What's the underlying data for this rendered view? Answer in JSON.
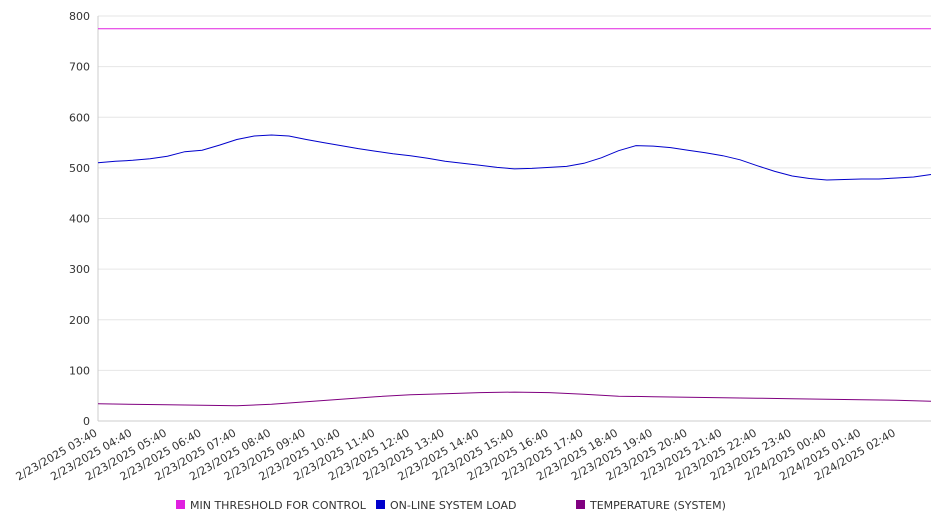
{
  "chart_data": {
    "type": "line",
    "x_ticks": [
      "2/23/2025 03:40",
      "2/23/2025 04:40",
      "2/23/2025 05:40",
      "2/23/2025 06:40",
      "2/23/2025 07:40",
      "2/23/2025 08:40",
      "2/23/2025 09:40",
      "2/23/2025 10:40",
      "2/23/2025 11:40",
      "2/23/2025 12:40",
      "2/23/2025 13:40",
      "2/23/2025 14:40",
      "2/23/2025 15:40",
      "2/23/2025 16:40",
      "2/23/2025 17:40",
      "2/23/2025 18:40",
      "2/23/2025 19:40",
      "2/23/2025 20:40",
      "2/23/2025 21:40",
      "2/23/2025 22:40",
      "2/23/2025 23:40",
      "2/24/2025 00:40",
      "2/24/2025 01:40",
      "2/24/2025 02:40"
    ],
    "ylim": [
      0,
      800
    ],
    "y_ticks": [
      0,
      100,
      200,
      300,
      400,
      500,
      600,
      700,
      800
    ],
    "grid": true,
    "legend_position": "bottom",
    "series": [
      {
        "name": "MIN THRESHOLD FOR CONTROL",
        "color": "#e020e0",
        "x": [
          "2/23/2025 03:40",
          "2/24/2025 03:40"
        ],
        "values": [
          775,
          775
        ]
      },
      {
        "name": "ON-LINE SYSTEM LOAD",
        "color": "#0000cc",
        "x": [
          "2/23/2025 03:40",
          "2/23/2025 04:10",
          "2/23/2025 04:40",
          "2/23/2025 05:10",
          "2/23/2025 05:40",
          "2/23/2025 06:10",
          "2/23/2025 06:40",
          "2/23/2025 07:10",
          "2/23/2025 07:40",
          "2/23/2025 08:10",
          "2/23/2025 08:40",
          "2/23/2025 09:10",
          "2/23/2025 09:40",
          "2/23/2025 10:10",
          "2/23/2025 10:40",
          "2/23/2025 11:10",
          "2/23/2025 11:40",
          "2/23/2025 12:10",
          "2/23/2025 12:40",
          "2/23/2025 13:10",
          "2/23/2025 13:40",
          "2/23/2025 14:10",
          "2/23/2025 14:40",
          "2/23/2025 15:10",
          "2/23/2025 15:40",
          "2/23/2025 16:10",
          "2/23/2025 16:40",
          "2/23/2025 17:10",
          "2/23/2025 17:40",
          "2/23/2025 18:10",
          "2/23/2025 18:40",
          "2/23/2025 19:10",
          "2/23/2025 19:40",
          "2/23/2025 20:10",
          "2/23/2025 20:40",
          "2/23/2025 21:10",
          "2/23/2025 21:40",
          "2/23/2025 22:10",
          "2/23/2025 22:40",
          "2/23/2025 23:10",
          "2/23/2025 23:40",
          "2/24/2025 00:10",
          "2/24/2025 00:40",
          "2/24/2025 01:10",
          "2/24/2025 01:40",
          "2/24/2025 02:10",
          "2/24/2025 02:40",
          "2/24/2025 03:10",
          "2/24/2025 03:40"
        ],
        "values": [
          510,
          513,
          515,
          518,
          523,
          532,
          535,
          545,
          556,
          563,
          565,
          563,
          556,
          550,
          544,
          538,
          533,
          528,
          524,
          519,
          513,
          509,
          505,
          501,
          498,
          499,
          501,
          503,
          509,
          520,
          534,
          544,
          543,
          540,
          535,
          530,
          524,
          516,
          504,
          493,
          484,
          479,
          476,
          477,
          478,
          478,
          480,
          482,
          487
        ]
      },
      {
        "name": "TEMPERATURE (SYSTEM)",
        "color": "#800080",
        "x": [
          "2/23/2025 03:40",
          "2/23/2025 05:40",
          "2/23/2025 07:40",
          "2/23/2025 08:40",
          "2/23/2025 09:40",
          "2/23/2025 10:40",
          "2/23/2025 11:40",
          "2/23/2025 12:40",
          "2/23/2025 13:40",
          "2/23/2025 14:40",
          "2/23/2025 15:40",
          "2/23/2025 16:40",
          "2/23/2025 17:40",
          "2/23/2025 18:40",
          "2/23/2025 19:40",
          "2/23/2025 20:40",
          "2/23/2025 21:40",
          "2/23/2025 22:40",
          "2/23/2025 23:40",
          "2/24/2025 00:40",
          "2/24/2025 01:40",
          "2/24/2025 02:40",
          "2/24/2025 03:40"
        ],
        "values": [
          34,
          32,
          30,
          33,
          38,
          43,
          48,
          52,
          54,
          56,
          57,
          56,
          53,
          49,
          48,
          47,
          46,
          45,
          44,
          43,
          42,
          41,
          39
        ]
      }
    ]
  }
}
